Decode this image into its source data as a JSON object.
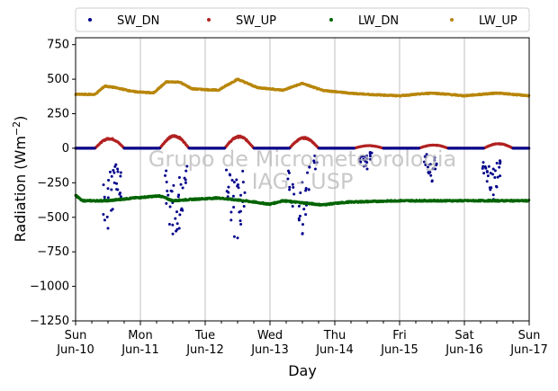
{
  "chart_data": {
    "type": "scatter",
    "xlabel": "Day",
    "ylabel": "Radiation (Wm",
    "ylabel_exp": "−2",
    "ylabel_close": ")",
    "ylim": [
      -1250,
      800
    ],
    "xlim": [
      0,
      7
    ],
    "grid": "vertical",
    "legend_placement": "top (above plot, 4 columns)",
    "watermark": [
      "Grupo de Micrometeorologia",
      "IAG - USP"
    ],
    "yticks": [
      {
        "value": 750,
        "label": "750"
      },
      {
        "value": 500,
        "label": "500"
      },
      {
        "value": 250,
        "label": "250"
      },
      {
        "value": 0,
        "label": "0"
      },
      {
        "value": -250,
        "label": "−250"
      },
      {
        "value": -500,
        "label": "−500"
      },
      {
        "value": -750,
        "label": "−750"
      },
      {
        "value": -1000,
        "label": "−1000"
      },
      {
        "value": -1250,
        "label": "−1250"
      }
    ],
    "xticks": [
      {
        "value": 0,
        "day": "Sun",
        "date": "Jun-10"
      },
      {
        "value": 1,
        "day": "Mon",
        "date": "Jun-11"
      },
      {
        "value": 2,
        "day": "Tue",
        "date": "Jun-12"
      },
      {
        "value": 3,
        "day": "Wed",
        "date": "Jun-13"
      },
      {
        "value": 4,
        "day": "Thu",
        "date": "Jun-14"
      },
      {
        "value": 5,
        "day": "Fri",
        "date": "Jun-15"
      },
      {
        "value": 6,
        "day": "Sat",
        "date": "Jun-16"
      },
      {
        "value": 7,
        "day": "Sun",
        "date": "Jun-17"
      }
    ],
    "series": [
      {
        "name": "SW_DN",
        "color": "#00008b",
        "daily_min": [
          -590,
          -650,
          -660,
          -620,
          -150,
          -240,
          -370
        ],
        "points": [
          [
            0.45,
            -520
          ],
          [
            0.5,
            -580
          ],
          [
            0.55,
            -450
          ],
          [
            0.6,
            -250
          ],
          [
            0.65,
            -300
          ],
          [
            0.7,
            -350
          ],
          [
            1.4,
            -400
          ],
          [
            1.45,
            -550
          ],
          [
            1.5,
            -620
          ],
          [
            1.55,
            -600
          ],
          [
            1.6,
            -580
          ],
          [
            1.65,
            -450
          ],
          [
            1.7,
            -250
          ],
          [
            2.35,
            -350
          ],
          [
            2.4,
            -520
          ],
          [
            2.45,
            -640
          ],
          [
            2.5,
            -650
          ],
          [
            2.55,
            -550
          ],
          [
            2.6,
            -420
          ],
          [
            3.3,
            -300
          ],
          [
            3.35,
            -420
          ],
          [
            3.45,
            -520
          ],
          [
            3.5,
            -620
          ],
          [
            3.55,
            -480
          ],
          [
            3.6,
            -300
          ],
          [
            3.7,
            -150
          ],
          [
            4.4,
            -100
          ],
          [
            4.45,
            -130
          ],
          [
            4.5,
            -150
          ],
          [
            4.55,
            -80
          ],
          [
            5.4,
            -120
          ],
          [
            5.45,
            -180
          ],
          [
            5.5,
            -240
          ],
          [
            5.55,
            -150
          ],
          [
            6.3,
            -180
          ],
          [
            6.35,
            -240
          ],
          [
            6.4,
            -300
          ],
          [
            6.45,
            -370
          ],
          [
            6.5,
            -280
          ],
          [
            6.55,
            -200
          ]
        ]
      },
      {
        "name": "SW_UP",
        "color": "#b22222",
        "daily_max": [
          75,
          95,
          90,
          80,
          20,
          25,
          35
        ]
      },
      {
        "name": "LW_DN",
        "color": "#006400",
        "points": [
          [
            0,
            -340
          ],
          [
            0.1,
            -380
          ],
          [
            0.5,
            -380
          ],
          [
            0.9,
            -360
          ],
          [
            1.3,
            -345
          ],
          [
            1.5,
            -380
          ],
          [
            1.8,
            -370
          ],
          [
            2.2,
            -360
          ],
          [
            2.6,
            -380
          ],
          [
            3.0,
            -405
          ],
          [
            3.2,
            -380
          ],
          [
            3.5,
            -395
          ],
          [
            3.8,
            -410
          ],
          [
            4.2,
            -390
          ],
          [
            5.0,
            -380
          ],
          [
            6.0,
            -380
          ],
          [
            7.0,
            -380
          ]
        ]
      },
      {
        "name": "LW_UP",
        "color": "#b8860b",
        "points": [
          [
            0,
            390
          ],
          [
            0.3,
            390
          ],
          [
            0.45,
            450
          ],
          [
            0.6,
            440
          ],
          [
            0.9,
            410
          ],
          [
            1.2,
            400
          ],
          [
            1.4,
            480
          ],
          [
            1.6,
            480
          ],
          [
            1.8,
            430
          ],
          [
            2.2,
            420
          ],
          [
            2.5,
            500
          ],
          [
            2.8,
            440
          ],
          [
            3.2,
            420
          ],
          [
            3.5,
            470
          ],
          [
            3.8,
            420
          ],
          [
            4.2,
            400
          ],
          [
            4.5,
            390
          ],
          [
            5.0,
            380
          ],
          [
            5.5,
            400
          ],
          [
            6.0,
            380
          ],
          [
            6.5,
            400
          ],
          [
            7.0,
            380
          ]
        ]
      }
    ]
  }
}
